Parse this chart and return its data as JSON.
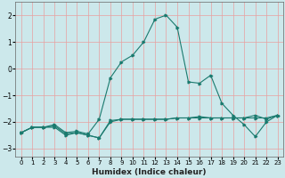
{
  "title": "",
  "xlabel": "Humidex (Indice chaleur)",
  "ylabel": "",
  "background_color": "#cce8eb",
  "grid_color": "#e8a0a0",
  "line_color": "#1a7a6e",
  "xlim": [
    -0.5,
    23.5
  ],
  "ylim": [
    -3.3,
    2.5
  ],
  "xticks": [
    0,
    1,
    2,
    3,
    4,
    5,
    6,
    7,
    8,
    9,
    10,
    11,
    12,
    13,
    14,
    15,
    16,
    17,
    18,
    19,
    20,
    21,
    22,
    23
  ],
  "yticks": [
    -3,
    -2,
    -1,
    0,
    1,
    2
  ],
  "series1": [
    [
      0,
      -2.4
    ],
    [
      1,
      -2.2
    ],
    [
      2,
      -2.2
    ],
    [
      3,
      -2.2
    ],
    [
      4,
      -2.5
    ],
    [
      5,
      -2.4
    ],
    [
      6,
      -2.5
    ],
    [
      7,
      -2.6
    ],
    [
      8,
      -2.0
    ],
    [
      9,
      -1.9
    ],
    [
      10,
      -1.9
    ],
    [
      11,
      -1.9
    ],
    [
      12,
      -1.9
    ],
    [
      13,
      -1.9
    ],
    [
      14,
      -1.85
    ],
    [
      15,
      -1.85
    ],
    [
      16,
      -1.85
    ],
    [
      17,
      -1.85
    ],
    [
      18,
      -1.85
    ],
    [
      19,
      -1.85
    ],
    [
      20,
      -1.85
    ],
    [
      21,
      -1.85
    ],
    [
      22,
      -1.85
    ],
    [
      23,
      -1.75
    ]
  ],
  "series2": [
    [
      0,
      -2.4
    ],
    [
      1,
      -2.2
    ],
    [
      2,
      -2.2
    ],
    [
      3,
      -2.1
    ],
    [
      4,
      -2.4
    ],
    [
      5,
      -2.35
    ],
    [
      6,
      -2.45
    ],
    [
      7,
      -1.9
    ],
    [
      8,
      -0.35
    ],
    [
      9,
      0.25
    ],
    [
      10,
      0.5
    ],
    [
      11,
      1.0
    ],
    [
      12,
      1.85
    ],
    [
      13,
      2.0
    ],
    [
      14,
      1.55
    ],
    [
      15,
      -0.5
    ],
    [
      16,
      -0.55
    ],
    [
      17,
      -0.25
    ],
    [
      18,
      -1.3
    ],
    [
      19,
      -1.75
    ],
    [
      20,
      -2.1
    ],
    [
      21,
      -2.55
    ],
    [
      22,
      -2.0
    ],
    [
      23,
      -1.75
    ]
  ],
  "series3": [
    [
      0,
      -2.4
    ],
    [
      1,
      -2.2
    ],
    [
      2,
      -2.2
    ],
    [
      3,
      -2.15
    ],
    [
      4,
      -2.45
    ],
    [
      5,
      -2.4
    ],
    [
      6,
      -2.5
    ],
    [
      7,
      -2.6
    ],
    [
      8,
      -1.95
    ],
    [
      9,
      -1.9
    ],
    [
      10,
      -1.9
    ],
    [
      11,
      -1.9
    ],
    [
      12,
      -1.9
    ],
    [
      13,
      -1.9
    ],
    [
      14,
      -1.85
    ],
    [
      15,
      -1.85
    ],
    [
      16,
      -1.8
    ],
    [
      17,
      -1.85
    ],
    [
      18,
      -1.85
    ],
    [
      19,
      -1.85
    ],
    [
      20,
      -1.85
    ],
    [
      21,
      -1.75
    ],
    [
      22,
      -1.9
    ],
    [
      23,
      -1.75
    ]
  ]
}
